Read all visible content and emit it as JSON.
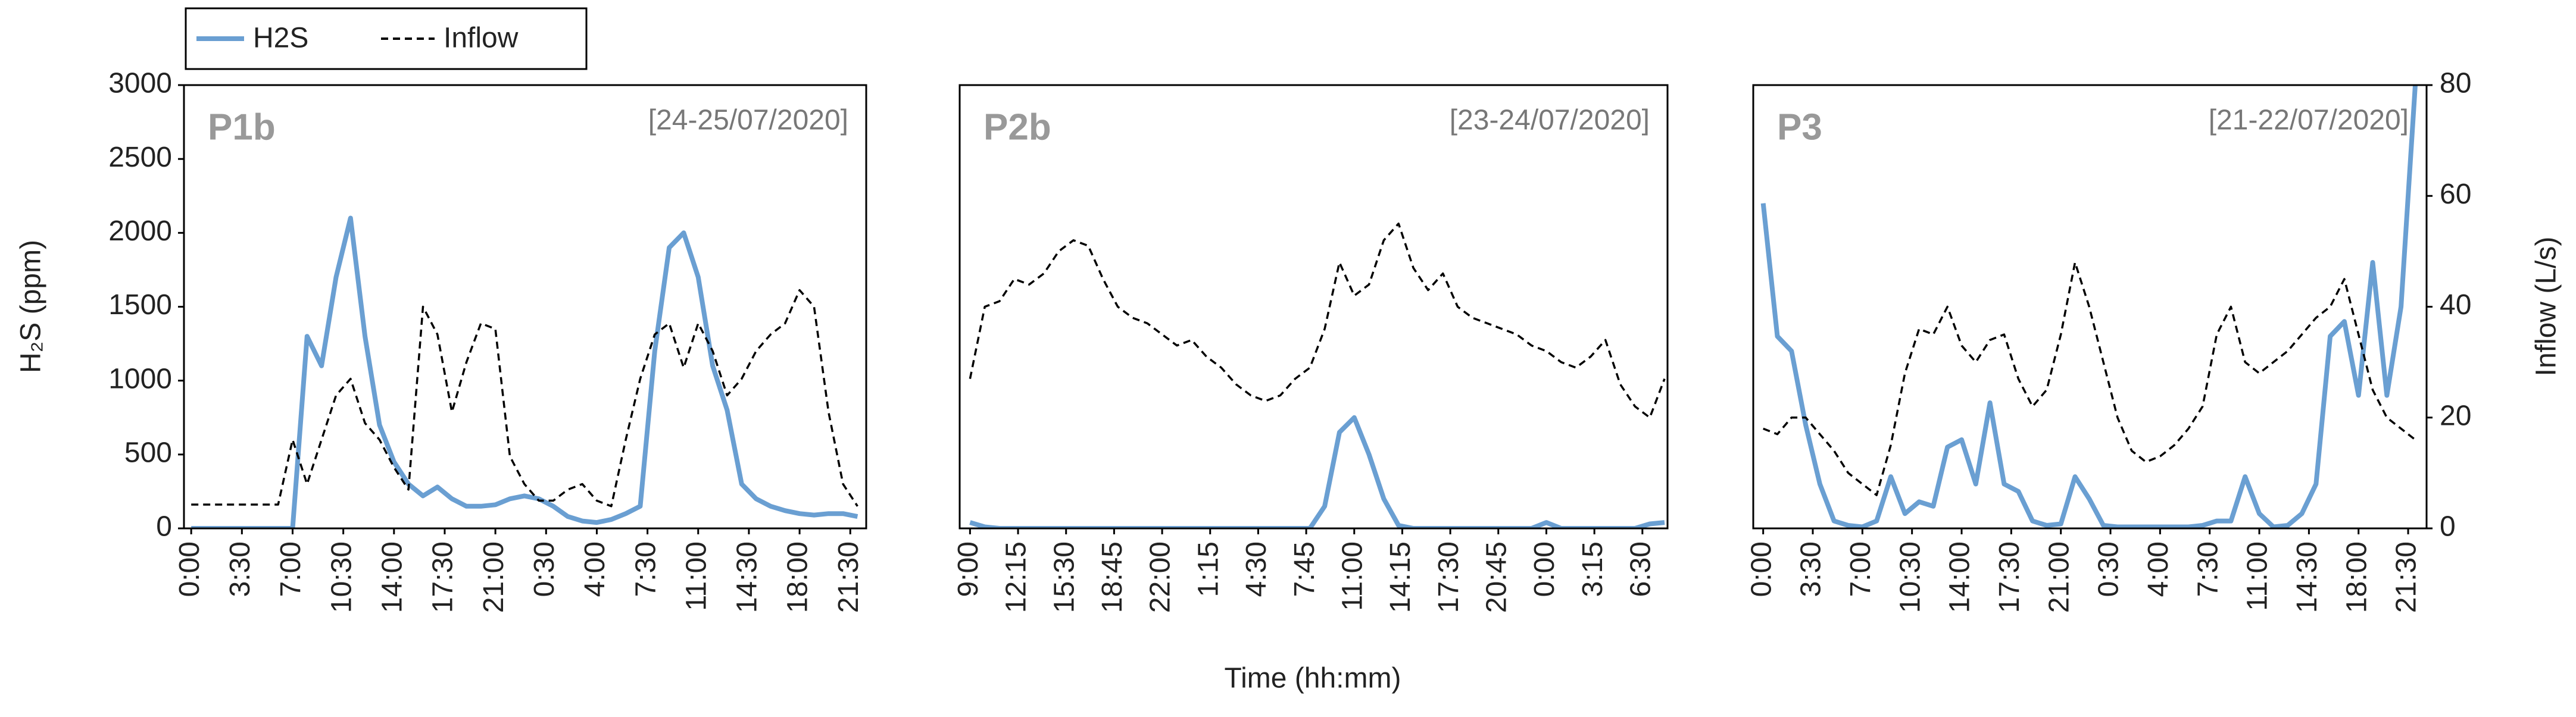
{
  "chart_data": [
    {
      "type": "line",
      "label": "P1b",
      "date": "[24-25/07/2020]",
      "ylabel": "H₂S (ppm)",
      "x": [
        0,
        1,
        2,
        3,
        4,
        5,
        6,
        7,
        8,
        9,
        10,
        11,
        12,
        13,
        14,
        15,
        16,
        17,
        18,
        19,
        20,
        21,
        22,
        23,
        24,
        25,
        26,
        27,
        28,
        29,
        30,
        31,
        32,
        33,
        34,
        35,
        36,
        37,
        38,
        39,
        40,
        41,
        42,
        43,
        44,
        45,
        46
      ],
      "xlim": [
        -0.5,
        46.6
      ],
      "xticks": [
        {
          "value": 0,
          "label": "0:00"
        },
        {
          "value": 3.5,
          "label": "3:30"
        },
        {
          "value": 7,
          "label": "7:00"
        },
        {
          "value": 10.5,
          "label": "10:30"
        },
        {
          "value": 14,
          "label": "14:00"
        },
        {
          "value": 17.5,
          "label": "17:30"
        },
        {
          "value": 21,
          "label": "21:00"
        },
        {
          "value": 24.5,
          "label": "0:30"
        },
        {
          "value": 28,
          "label": "4:00"
        },
        {
          "value": 31.5,
          "label": "7:30"
        },
        {
          "value": 35,
          "label": "11:00"
        },
        {
          "value": 38.5,
          "label": "14:30"
        },
        {
          "value": 42,
          "label": "18:00"
        },
        {
          "value": 45.5,
          "label": "21:30"
        }
      ],
      "ylim": [
        0,
        3000
      ],
      "yticks": [
        0,
        500,
        1000,
        1500,
        2000,
        2500,
        3000
      ],
      "y2lim": [
        0,
        80
      ],
      "series": [
        {
          "name": "H2S",
          "color": "#6a9fd2",
          "values": [
            0,
            0,
            0,
            0,
            0,
            0,
            0,
            0,
            1300,
            1100,
            1700,
            2100,
            1300,
            700,
            450,
            300,
            220,
            280,
            200,
            150,
            150,
            160,
            200,
            220,
            200,
            150,
            80,
            50,
            40,
            60,
            100,
            150,
            1200,
            1900,
            2000,
            1700,
            1100,
            800,
            300,
            200,
            150,
            120,
            100,
            90,
            100,
            100,
            80
          ]
        },
        {
          "name": "Inflow",
          "color": "#000000",
          "dashed": true,
          "axis": "y2",
          "values": [
            4.3,
            4.3,
            4.3,
            4.3,
            4.3,
            4.3,
            4.3,
            16,
            8,
            16,
            24,
            27,
            19,
            16,
            11,
            7,
            40,
            35,
            21,
            30,
            37,
            36,
            13,
            8,
            5,
            5,
            7,
            8,
            5,
            4,
            16,
            27,
            35,
            37,
            29,
            37,
            32,
            24,
            27,
            32,
            35,
            37,
            43,
            40,
            21,
            8,
            4
          ]
        }
      ]
    },
    {
      "type": "line",
      "label": "P2b",
      "date": "[23-24/07/2020]",
      "xlabel": "Time (hh:mm)",
      "x": [
        9,
        10,
        11,
        12,
        13,
        14,
        15,
        16,
        17,
        18,
        19,
        20,
        21,
        22,
        23,
        24,
        25,
        26,
        27,
        28,
        29,
        30,
        31,
        32,
        33,
        34,
        35,
        36,
        37,
        38,
        39,
        40,
        41,
        42,
        43,
        44,
        45,
        46,
        47,
        48,
        49,
        50,
        51,
        52,
        53,
        54,
        55,
        56
      ],
      "xlim": [
        8.3,
        56.2
      ],
      "xticks": [
        {
          "value": 9,
          "label": "9:00"
        },
        {
          "value": 12.25,
          "label": "12:15"
        },
        {
          "value": 15.5,
          "label": "15:30"
        },
        {
          "value": 18.75,
          "label": "18:45"
        },
        {
          "value": 22,
          "label": "22:00"
        },
        {
          "value": 25.25,
          "label": "1:15"
        },
        {
          "value": 28.5,
          "label": "4:30"
        },
        {
          "value": 31.75,
          "label": "7:45"
        },
        {
          "value": 35,
          "label": "11:00"
        },
        {
          "value": 38.25,
          "label": "14:15"
        },
        {
          "value": 41.5,
          "label": "17:30"
        },
        {
          "value": 44.75,
          "label": "20:45"
        },
        {
          "value": 48,
          "label": "0:00"
        },
        {
          "value": 51.25,
          "label": "3:15"
        },
        {
          "value": 54.5,
          "label": "6:30"
        }
      ],
      "ylim": [
        0,
        3000
      ],
      "y2lim": [
        0,
        80
      ],
      "series": [
        {
          "name": "H2S",
          "color": "#6a9fd2",
          "values": [
            40,
            10,
            0,
            0,
            0,
            0,
            0,
            0,
            0,
            0,
            0,
            0,
            0,
            0,
            0,
            0,
            0,
            0,
            0,
            0,
            0,
            0,
            0,
            0,
            150,
            650,
            750,
            500,
            200,
            20,
            0,
            0,
            0,
            0,
            0,
            0,
            0,
            0,
            0,
            40,
            0,
            0,
            0,
            0,
            0,
            0,
            30,
            40
          ]
        },
        {
          "name": "Inflow",
          "color": "#000000",
          "dashed": true,
          "axis": "y2",
          "values": [
            27,
            40,
            41,
            45,
            44,
            46,
            50,
            52,
            51,
            45,
            40,
            38,
            37,
            35,
            33,
            34,
            31,
            29,
            26,
            24,
            23,
            24,
            27,
            29,
            36,
            48,
            42,
            44,
            52,
            55,
            47,
            43,
            46,
            40,
            38,
            37,
            36,
            35,
            33,
            32,
            30,
            29,
            31,
            34,
            26,
            22,
            20,
            27
          ]
        }
      ]
    },
    {
      "type": "line",
      "label": "P3",
      "date": "[21-22/07/2020]",
      "y2label": "Inflow (L/s)",
      "x": [
        0,
        1,
        2,
        3,
        4,
        5,
        6,
        7,
        8,
        9,
        10,
        11,
        12,
        13,
        14,
        15,
        16,
        17,
        18,
        19,
        20,
        21,
        22,
        23,
        24,
        25,
        26,
        27,
        28,
        29,
        30,
        31,
        32,
        33,
        34,
        35,
        36,
        37,
        38,
        39,
        40,
        41,
        42,
        43,
        44,
        45,
        46
      ],
      "xlim": [
        -0.7,
        46.8
      ],
      "xticks": [
        {
          "value": 0,
          "label": "0:00"
        },
        {
          "value": 3.5,
          "label": "3:30"
        },
        {
          "value": 7,
          "label": "7:00"
        },
        {
          "value": 10.5,
          "label": "10:30"
        },
        {
          "value": 14,
          "label": "14:00"
        },
        {
          "value": 17.5,
          "label": "17:30"
        },
        {
          "value": 21,
          "label": "21:00"
        },
        {
          "value": 24.5,
          "label": "0:30"
        },
        {
          "value": 28,
          "label": "4:00"
        },
        {
          "value": 31.5,
          "label": "7:30"
        },
        {
          "value": 35,
          "label": "11:00"
        },
        {
          "value": 38.5,
          "label": "14:30"
        },
        {
          "value": 42,
          "label": "18:00"
        },
        {
          "value": 45.5,
          "label": "21:30"
        }
      ],
      "ylim": [
        0,
        3000
      ],
      "y2lim": [
        0,
        80
      ],
      "y2ticks": [
        0,
        20,
        40,
        60,
        80
      ],
      "series": [
        {
          "name": "H2S",
          "color": "#6a9fd2",
          "values": [
            2200,
            1300,
            1200,
            700,
            300,
            50,
            20,
            10,
            50,
            350,
            100,
            180,
            150,
            550,
            600,
            300,
            850,
            300,
            250,
            50,
            20,
            30,
            350,
            200,
            20,
            10,
            10,
            10,
            10,
            10,
            10,
            20,
            50,
            50,
            350,
            100,
            10,
            20,
            100,
            300,
            1300,
            1400,
            900,
            1800,
            900,
            1500,
            3000
          ]
        },
        {
          "name": "Inflow",
          "color": "#000000",
          "dashed": true,
          "axis": "y2",
          "values": [
            18,
            17,
            20,
            20,
            17,
            14,
            10,
            8,
            6,
            15,
            28,
            36,
            35,
            40,
            33,
            30,
            34,
            35,
            27,
            22,
            25,
            35,
            48,
            40,
            30,
            20,
            14,
            12,
            13,
            15,
            18,
            22,
            35,
            40,
            30,
            28,
            30,
            32,
            35,
            38,
            40,
            45,
            35,
            25,
            20,
            18,
            16
          ]
        }
      ]
    }
  ]
}
